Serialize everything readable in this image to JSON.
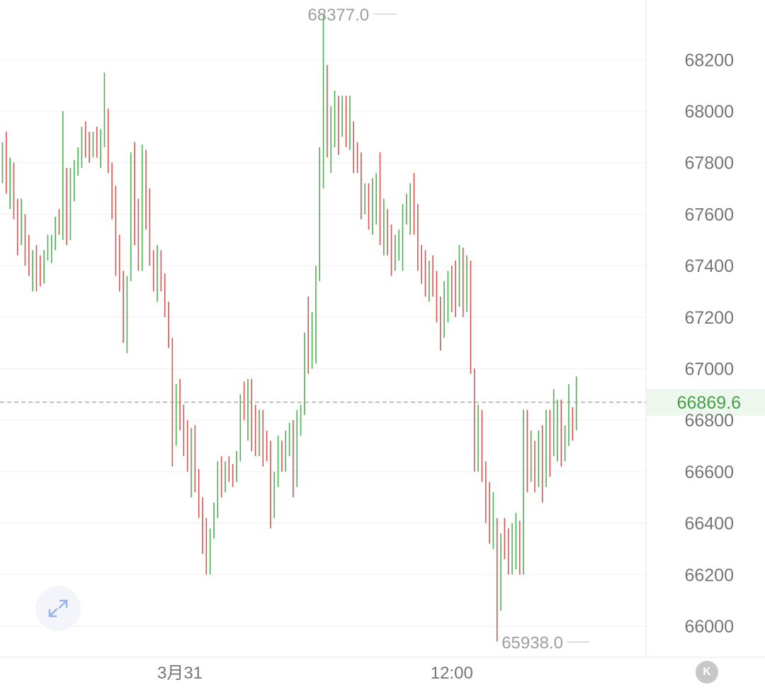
{
  "chart_data": {
    "type": "ohlc",
    "title": "",
    "xlabel": "",
    "ylabel": "",
    "ylim": [
      65870,
      68420
    ],
    "y_ticks": [
      "66000",
      "66200",
      "66400",
      "66600",
      "66800",
      "67000",
      "67200",
      "67400",
      "67600",
      "67800",
      "68000",
      "68200"
    ],
    "x_ticks": [
      {
        "label": "3月31",
        "index": 47
      },
      {
        "label": "12:00",
        "index": 119
      }
    ],
    "grid": true,
    "current_price": {
      "value": 66869.6,
      "label": "66869.6"
    },
    "high_marker": {
      "value": 68377.0,
      "label": "68377.0",
      "index": 105
    },
    "low_marker": {
      "value": 65938.0,
      "label": "65938.0",
      "index": 156
    },
    "up_color": "#4caf50",
    "down_color": "#d9534f",
    "bars": [
      [
        67860,
        67880,
        67720,
        67860
      ],
      [
        67860,
        67920,
        67680,
        67720
      ],
      [
        67720,
        67820,
        67620,
        67780
      ],
      [
        67780,
        67800,
        67580,
        67600
      ],
      [
        67600,
        67660,
        67440,
        67520
      ],
      [
        67520,
        67660,
        67480,
        67580
      ],
      [
        67580,
        67600,
        67400,
        67460
      ],
      [
        67460,
        67520,
        67360,
        67380
      ],
      [
        67380,
        67460,
        67300,
        67440
      ],
      [
        67440,
        67480,
        67300,
        67400
      ],
      [
        67400,
        67440,
        67320,
        67360
      ],
      [
        67360,
        67460,
        67330,
        67440
      ],
      [
        67440,
        67520,
        67420,
        67460
      ],
      [
        67460,
        67520,
        67410,
        67470
      ],
      [
        67470,
        67590,
        67460,
        67560
      ],
      [
        67560,
        67620,
        67520,
        67540
      ],
      [
        67540,
        68000,
        67500,
        67740
      ],
      [
        67740,
        67780,
        67480,
        67540
      ],
      [
        67540,
        67780,
        67500,
        67760
      ],
      [
        67760,
        67810,
        67650,
        67800
      ],
      [
        67800,
        67860,
        67750,
        67850
      ],
      [
        67850,
        67940,
        67780,
        67920
      ],
      [
        67920,
        67960,
        67820,
        67880
      ],
      [
        67880,
        67920,
        67800,
        67860
      ],
      [
        67860,
        67920,
        67820,
        67900
      ],
      [
        67900,
        67940,
        67820,
        67880
      ],
      [
        67880,
        67930,
        67780,
        67920
      ],
      [
        67920,
        68150,
        67860,
        68000
      ],
      [
        68000,
        68010,
        67760,
        67780
      ],
      [
        67780,
        67800,
        67580,
        67710
      ],
      [
        67710,
        67710,
        67360,
        67520
      ],
      [
        67520,
        67520,
        67300,
        67380
      ],
      [
        67380,
        67380,
        67100,
        67240
      ],
      [
        67240,
        67360,
        67060,
        67380
      ],
      [
        67380,
        67840,
        67340,
        67820
      ],
      [
        67820,
        67880,
        67480,
        67580
      ],
      [
        67580,
        67660,
        67380,
        67400
      ],
      [
        67400,
        67870,
        67380,
        67800
      ],
      [
        67800,
        67850,
        67540,
        67660
      ],
      [
        67660,
        67700,
        67400,
        67440
      ],
      [
        67440,
        67460,
        67300,
        67360
      ],
      [
        67360,
        67480,
        67260,
        67440
      ],
      [
        67440,
        67460,
        67300,
        67360
      ],
      [
        67360,
        67370,
        67200,
        67260
      ],
      [
        67260,
        67260,
        67080,
        67100
      ],
      [
        67100,
        67120,
        66620,
        66720
      ],
      [
        66720,
        66940,
        66700,
        66900
      ],
      [
        66900,
        66960,
        66760,
        66800
      ],
      [
        66800,
        66860,
        66660,
        66720
      ],
      [
        66720,
        66800,
        66600,
        66640
      ],
      [
        66640,
        66770,
        66500,
        66760
      ],
      [
        66760,
        66780,
        66520,
        66600
      ],
      [
        66600,
        66610,
        66420,
        66460
      ],
      [
        66460,
        66500,
        66280,
        66400
      ],
      [
        66400,
        66420,
        66200,
        66230
      ],
      [
        66230,
        66380,
        66200,
        66360
      ],
      [
        66360,
        66480,
        66340,
        66440
      ],
      [
        66440,
        66640,
        66420,
        66580
      ],
      [
        66580,
        66660,
        66500,
        66540
      ],
      [
        66540,
        66640,
        66520,
        66630
      ],
      [
        66630,
        66660,
        66560,
        66620
      ],
      [
        66620,
        66630,
        66540,
        66600
      ],
      [
        66600,
        66680,
        66560,
        66660
      ],
      [
        66660,
        66900,
        66640,
        66840
      ],
      [
        66840,
        66950,
        66800,
        66820
      ],
      [
        66820,
        66960,
        66720,
        66880
      ],
      [
        66880,
        66960,
        66680,
        66780
      ],
      [
        66780,
        66860,
        66660,
        66740
      ],
      [
        66740,
        66840,
        66660,
        66800
      ],
      [
        66800,
        66840,
        66620,
        66680
      ],
      [
        66680,
        66760,
        66640,
        66660
      ],
      [
        66660,
        66720,
        66380,
        66440
      ],
      [
        66440,
        66600,
        66420,
        66580
      ],
      [
        66580,
        66740,
        66540,
        66700
      ],
      [
        66700,
        66720,
        66600,
        66640
      ],
      [
        66640,
        66760,
        66600,
        66720
      ],
      [
        66720,
        66790,
        66660,
        66760
      ],
      [
        66760,
        66800,
        66500,
        66560
      ],
      [
        66560,
        66840,
        66540,
        66780
      ],
      [
        66780,
        66860,
        66740,
        66840
      ],
      [
        66840,
        67140,
        66820,
        67120
      ],
      [
        67120,
        67280,
        66980,
        67080
      ],
      [
        67080,
        67220,
        67000,
        67200
      ],
      [
        67200,
        67400,
        67020,
        67360
      ],
      [
        67360,
        67860,
        67340,
        67820
      ],
      [
        67820,
        68380,
        67700,
        68060
      ],
      [
        68060,
        68180,
        67820,
        67900
      ],
      [
        67900,
        68020,
        67760,
        67980
      ],
      [
        67980,
        68080,
        67860,
        68040
      ],
      [
        68040,
        68060,
        67830,
        67980
      ],
      [
        67980,
        68060,
        67900,
        68020
      ],
      [
        68020,
        68060,
        67860,
        67920
      ],
      [
        67920,
        68060,
        67850,
        67930
      ],
      [
        67930,
        67960,
        67760,
        67840
      ],
      [
        67840,
        67880,
        67760,
        67800
      ],
      [
        67800,
        67840,
        67580,
        67620
      ],
      [
        67620,
        67720,
        67600,
        67700
      ],
      [
        67700,
        67720,
        67540,
        67600
      ],
      [
        67600,
        67740,
        67520,
        67680
      ],
      [
        67680,
        67760,
        67560,
        67720
      ],
      [
        67720,
        67840,
        67480,
        67520
      ],
      [
        67520,
        67660,
        67440,
        67560
      ],
      [
        67560,
        67620,
        67440,
        67520
      ],
      [
        67520,
        67560,
        67360,
        67440
      ],
      [
        67440,
        67520,
        67380,
        67480
      ],
      [
        67480,
        67540,
        67420,
        67520
      ],
      [
        67520,
        67640,
        67380,
        67600
      ],
      [
        67600,
        67680,
        67560,
        67620
      ],
      [
        67620,
        67720,
        67520,
        67680
      ],
      [
        67680,
        67760,
        67520,
        67620
      ],
      [
        67620,
        67640,
        67380,
        67440
      ],
      [
        67440,
        67480,
        67330,
        67400
      ],
      [
        67400,
        67460,
        67280,
        67320
      ],
      [
        67320,
        67420,
        67260,
        67380
      ],
      [
        67380,
        67440,
        67280,
        67340
      ],
      [
        67340,
        67380,
        67180,
        67260
      ],
      [
        67260,
        67280,
        67070,
        67160
      ],
      [
        67160,
        67340,
        67120,
        67260
      ],
      [
        67260,
        67380,
        67180,
        67340
      ],
      [
        67340,
        67400,
        67220,
        67300
      ],
      [
        67300,
        67420,
        67200,
        67260
      ],
      [
        67260,
        67480,
        67240,
        67460
      ],
      [
        67460,
        67470,
        67200,
        67240
      ],
      [
        67240,
        67440,
        67220,
        67420
      ],
      [
        67420,
        67420,
        66980,
        67000
      ],
      [
        67000,
        67000,
        66600,
        66680
      ],
      [
        66680,
        66860,
        66600,
        66820
      ],
      [
        66820,
        66840,
        66560,
        66620
      ],
      [
        66620,
        66640,
        66400,
        66480
      ],
      [
        66480,
        66560,
        66320,
        66360
      ],
      [
        66360,
        66520,
        66300,
        66400
      ],
      [
        66400,
        66420,
        65940,
        66280
      ],
      [
        66280,
        66360,
        66060,
        66340
      ],
      [
        66340,
        66420,
        66260,
        66300
      ],
      [
        66300,
        66380,
        66200,
        66240
      ],
      [
        66240,
        66400,
        66200,
        66320
      ],
      [
        66320,
        66440,
        66220,
        66400
      ],
      [
        66400,
        66410,
        66200,
        66220
      ],
      [
        66220,
        66840,
        66200,
        66820
      ],
      [
        66820,
        66840,
        66520,
        66620
      ],
      [
        66620,
        66760,
        66560,
        66700
      ],
      [
        66700,
        66720,
        66520,
        66560
      ],
      [
        66560,
        66760,
        66540,
        66740
      ],
      [
        66740,
        66780,
        66480,
        66560
      ],
      [
        66560,
        66840,
        66540,
        66780
      ],
      [
        66780,
        66840,
        66580,
        66680
      ],
      [
        66680,
        66920,
        66660,
        66800
      ],
      [
        66800,
        66880,
        66640,
        66860
      ],
      [
        66860,
        66880,
        66620,
        66680
      ],
      [
        66680,
        66780,
        66640,
        66760
      ],
      [
        66760,
        66940,
        66700,
        66800
      ],
      [
        66800,
        66850,
        66720,
        66780
      ],
      [
        66780,
        66970,
        66760,
        66850
      ]
    ]
  }
}
